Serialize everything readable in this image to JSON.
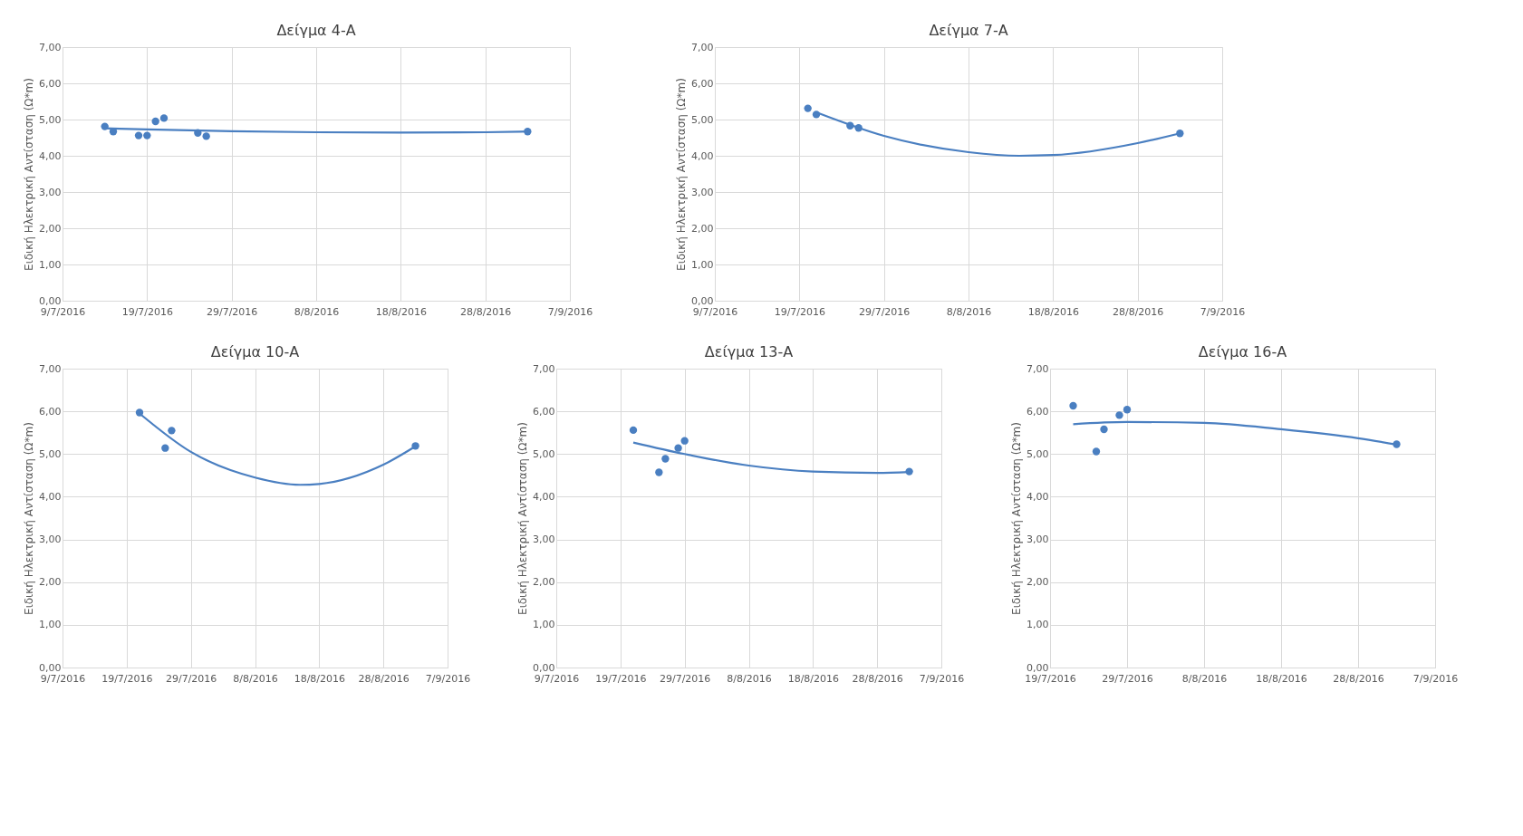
{
  "chart_data": [
    {
      "type": "scatter",
      "title": "Δείγμα 4-Α",
      "ylabel": "Ειδική Ηλεκτρική Αντίσταση (Ω*m)",
      "xlim": [
        "2016-07-09",
        "2016-09-07"
      ],
      "ylim": [
        0,
        7
      ],
      "xticks": [
        {
          "value": "2016-07-09",
          "label": "9/7/2016"
        },
        {
          "value": "2016-07-19",
          "label": "19/7/2016"
        },
        {
          "value": "2016-07-29",
          "label": "29/7/2016"
        },
        {
          "value": "2016-08-08",
          "label": "8/8/2016"
        },
        {
          "value": "2016-08-18",
          "label": "18/8/2016"
        },
        {
          "value": "2016-08-28",
          "label": "28/8/2016"
        },
        {
          "value": "2016-09-07",
          "label": "7/9/2016"
        }
      ],
      "yticks": [
        {
          "value": 0,
          "label": "0,00"
        },
        {
          "value": 1,
          "label": "1,00"
        },
        {
          "value": 2,
          "label": "2,00"
        },
        {
          "value": 3,
          "label": "3,00"
        },
        {
          "value": 4,
          "label": "4,00"
        },
        {
          "value": 5,
          "label": "5,00"
        },
        {
          "value": 6,
          "label": "6,00"
        },
        {
          "value": 7,
          "label": "7,00"
        }
      ],
      "grid": true,
      "series": [
        {
          "type": "scatter",
          "marker": "circle",
          "color": "#4a7fc1",
          "x": [
            "2016-07-14",
            "2016-07-15",
            "2016-07-18",
            "2016-07-19",
            "2016-07-20",
            "2016-07-21",
            "2016-07-25",
            "2016-07-26",
            "2016-09-02"
          ],
          "values": [
            4.81,
            4.67,
            4.56,
            4.56,
            4.95,
            5.04,
            4.63,
            4.54,
            4.67
          ]
        },
        {
          "type": "line",
          "line_style": "solid",
          "color": "#4a7fc1",
          "x": [
            "2016-07-14",
            "2016-07-19",
            "2016-07-29",
            "2016-08-08",
            "2016-08-18",
            "2016-08-28",
            "2016-09-02"
          ],
          "values": [
            4.76,
            4.73,
            4.68,
            4.65,
            4.64,
            4.65,
            4.67
          ]
        }
      ]
    },
    {
      "type": "scatter",
      "title": "Δείγμα 7-Α",
      "ylabel": "Ειδική Ηλεκτρική Αντίσταση (Ω*m)",
      "xlim": [
        "2016-07-09",
        "2016-09-07"
      ],
      "ylim": [
        0,
        7
      ],
      "xticks": [
        {
          "value": "2016-07-09",
          "label": "9/7/2016"
        },
        {
          "value": "2016-07-19",
          "label": "19/7/2016"
        },
        {
          "value": "2016-07-29",
          "label": "29/7/2016"
        },
        {
          "value": "2016-08-08",
          "label": "8/8/2016"
        },
        {
          "value": "2016-08-18",
          "label": "18/8/2016"
        },
        {
          "value": "2016-08-28",
          "label": "28/8/2016"
        },
        {
          "value": "2016-09-07",
          "label": "7/9/2016"
        }
      ],
      "yticks": [
        {
          "value": 0,
          "label": "0,00"
        },
        {
          "value": 1,
          "label": "1,00"
        },
        {
          "value": 2,
          "label": "2,00"
        },
        {
          "value": 3,
          "label": "3,00"
        },
        {
          "value": 4,
          "label": "4,00"
        },
        {
          "value": 5,
          "label": "5,00"
        },
        {
          "value": 6,
          "label": "6,00"
        },
        {
          "value": 7,
          "label": "7,00"
        }
      ],
      "grid": true,
      "series": [
        {
          "type": "scatter",
          "marker": "circle",
          "color": "#4a7fc1",
          "x": [
            "2016-07-20",
            "2016-07-21",
            "2016-07-25",
            "2016-07-26",
            "2016-09-02"
          ],
          "values": [
            5.31,
            5.14,
            4.83,
            4.77,
            4.62
          ]
        },
        {
          "type": "line",
          "line_style": "solid",
          "color": "#4a7fc1",
          "x": [
            "2016-07-21",
            "2016-07-29",
            "2016-08-08",
            "2016-08-14",
            "2016-08-18",
            "2016-08-28",
            "2016-09-02"
          ],
          "values": [
            5.2,
            4.55,
            4.1,
            4.0,
            4.02,
            4.35,
            4.62
          ]
        }
      ]
    },
    {
      "type": "scatter",
      "title": "Δείγμα 10-Α",
      "ylabel": "Ειδική Ηλεκτρική Αντίσταση (Ω*m)",
      "xlim": [
        "2016-07-09",
        "2016-09-07"
      ],
      "ylim": [
        0,
        7
      ],
      "xticks": [
        {
          "value": "2016-07-09",
          "label": "9/7/2016"
        },
        {
          "value": "2016-07-19",
          "label": "19/7/2016"
        },
        {
          "value": "2016-07-29",
          "label": "29/7/2016"
        },
        {
          "value": "2016-08-08",
          "label": "8/8/2016"
        },
        {
          "value": "2016-08-18",
          "label": "18/8/2016"
        },
        {
          "value": "2016-08-28",
          "label": "28/8/2016"
        },
        {
          "value": "2016-09-07",
          "label": "7/9/2016"
        }
      ],
      "yticks": [
        {
          "value": 0,
          "label": "0,00"
        },
        {
          "value": 1,
          "label": "1,00"
        },
        {
          "value": 2,
          "label": "2,00"
        },
        {
          "value": 3,
          "label": "3,00"
        },
        {
          "value": 4,
          "label": "4,00"
        },
        {
          "value": 5,
          "label": "5,00"
        },
        {
          "value": 6,
          "label": "6,00"
        },
        {
          "value": 7,
          "label": "7,00"
        }
      ],
      "grid": true,
      "series": [
        {
          "type": "scatter",
          "marker": "circle",
          "color": "#4a7fc1",
          "x": [
            "2016-07-21",
            "2016-07-25",
            "2016-07-26",
            "2016-09-02"
          ],
          "values": [
            5.97,
            5.14,
            5.55,
            5.19
          ]
        },
        {
          "type": "line",
          "line_style": "solid",
          "color": "#4a7fc1",
          "x": [
            "2016-07-21",
            "2016-07-29",
            "2016-08-08",
            "2016-08-15",
            "2016-08-18",
            "2016-08-28",
            "2016-09-02"
          ],
          "values": [
            5.95,
            5.05,
            4.45,
            4.28,
            4.3,
            4.75,
            5.18
          ]
        }
      ]
    },
    {
      "type": "scatter",
      "title": "Δείγμα 13-Α",
      "ylabel": "Ειδική Ηλεκτρική Αντίσταση (Ω*m)",
      "xlim": [
        "2016-07-09",
        "2016-09-07"
      ],
      "ylim": [
        0,
        7
      ],
      "xticks": [
        {
          "value": "2016-07-09",
          "label": "9/7/2016"
        },
        {
          "value": "2016-07-19",
          "label": "19/7/2016"
        },
        {
          "value": "2016-07-29",
          "label": "29/7/2016"
        },
        {
          "value": "2016-08-08",
          "label": "8/8/2016"
        },
        {
          "value": "2016-08-18",
          "label": "18/8/2016"
        },
        {
          "value": "2016-08-28",
          "label": "28/8/2016"
        },
        {
          "value": "2016-09-07",
          "label": "7/9/2016"
        }
      ],
      "yticks": [
        {
          "value": 0,
          "label": "0,00"
        },
        {
          "value": 1,
          "label": "1,00"
        },
        {
          "value": 2,
          "label": "2,00"
        },
        {
          "value": 3,
          "label": "3,00"
        },
        {
          "value": 4,
          "label": "4,00"
        },
        {
          "value": 5,
          "label": "5,00"
        },
        {
          "value": 6,
          "label": "6,00"
        },
        {
          "value": 7,
          "label": "7,00"
        }
      ],
      "grid": true,
      "series": [
        {
          "type": "scatter",
          "marker": "circle",
          "color": "#4a7fc1",
          "x": [
            "2016-07-21",
            "2016-07-25",
            "2016-07-26",
            "2016-07-28",
            "2016-07-29",
            "2016-09-02"
          ],
          "values": [
            5.56,
            4.57,
            4.89,
            5.14,
            5.31,
            4.59
          ]
        },
        {
          "type": "line",
          "line_style": "solid",
          "color": "#4a7fc1",
          "x": [
            "2016-07-21",
            "2016-07-29",
            "2016-08-08",
            "2016-08-18",
            "2016-08-28",
            "2016-09-02"
          ],
          "values": [
            5.27,
            5.0,
            4.73,
            4.59,
            4.56,
            4.58
          ]
        }
      ]
    },
    {
      "type": "scatter",
      "title": "Δείγμα 16-Α",
      "ylabel": "Ειδική Ηλεκτρική Αντίσταση (Ω*m)",
      "xlim": [
        "2016-07-19",
        "2016-09-07"
      ],
      "ylim": [
        0,
        7
      ],
      "xticks": [
        {
          "value": "2016-07-19",
          "label": "19/7/2016"
        },
        {
          "value": "2016-07-29",
          "label": "29/7/2016"
        },
        {
          "value": "2016-08-08",
          "label": "8/8/2016"
        },
        {
          "value": "2016-08-18",
          "label": "18/8/2016"
        },
        {
          "value": "2016-08-28",
          "label": "28/8/2016"
        },
        {
          "value": "2016-09-07",
          "label": "7/9/2016"
        }
      ],
      "yticks": [
        {
          "value": 0,
          "label": "0,00"
        },
        {
          "value": 1,
          "label": "1,00"
        },
        {
          "value": 2,
          "label": "2,00"
        },
        {
          "value": 3,
          "label": "3,00"
        },
        {
          "value": 4,
          "label": "4,00"
        },
        {
          "value": 5,
          "label": "5,00"
        },
        {
          "value": 6,
          "label": "6,00"
        },
        {
          "value": 7,
          "label": "7,00"
        }
      ],
      "grid": true,
      "series": [
        {
          "type": "scatter",
          "marker": "circle",
          "color": "#4a7fc1",
          "x": [
            "2016-07-22",
            "2016-07-25",
            "2016-07-26",
            "2016-07-28",
            "2016-07-29",
            "2016-09-02"
          ],
          "values": [
            6.13,
            5.06,
            5.58,
            5.91,
            6.04,
            5.23
          ]
        },
        {
          "type": "line",
          "line_style": "solid",
          "color": "#4a7fc1",
          "x": [
            "2016-07-22",
            "2016-07-29",
            "2016-08-08",
            "2016-08-18",
            "2016-08-28",
            "2016-09-02"
          ],
          "values": [
            5.7,
            5.75,
            5.73,
            5.58,
            5.37,
            5.22
          ]
        }
      ]
    }
  ]
}
